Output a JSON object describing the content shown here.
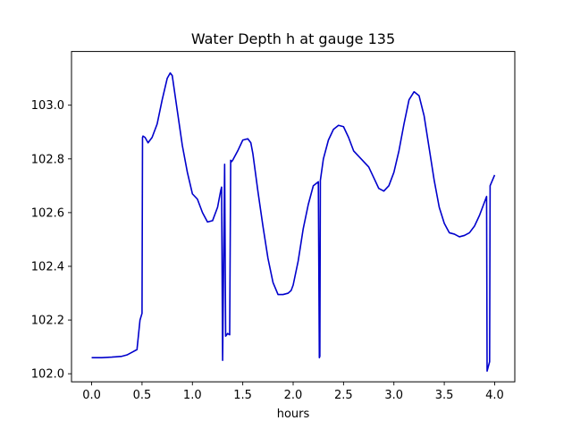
{
  "chart_data": {
    "type": "line",
    "title": "Water Depth h at gauge 135",
    "xlabel": "hours",
    "ylabel": "",
    "xlim": [
      -0.2,
      4.2
    ],
    "ylim": [
      101.97,
      103.2
    ],
    "xticks": [
      0.0,
      0.5,
      1.0,
      1.5,
      2.0,
      2.5,
      3.0,
      3.5,
      4.0
    ],
    "xtick_labels": [
      "0.0",
      "0.5",
      "1.0",
      "1.5",
      "2.0",
      "2.5",
      "3.0",
      "3.5",
      "4.0"
    ],
    "yticks": [
      102.0,
      102.2,
      102.4,
      102.6,
      102.8,
      103.0
    ],
    "ytick_labels": [
      "102.0",
      "102.2",
      "102.4",
      "102.6",
      "102.8",
      "103.0"
    ],
    "grid": false,
    "legend": "none",
    "line_color": "#0000cc",
    "series": [
      {
        "x": [
          0.0,
          0.1,
          0.2,
          0.3,
          0.35,
          0.4,
          0.45,
          0.48,
          0.5,
          0.505,
          0.51,
          0.53,
          0.56,
          0.6,
          0.65,
          0.7,
          0.75,
          0.78,
          0.8,
          0.85,
          0.9,
          0.95,
          1.0,
          1.05,
          1.1,
          1.15,
          1.2,
          1.25,
          1.28,
          1.29,
          1.3,
          1.32,
          1.33,
          1.35,
          1.37,
          1.38,
          1.39,
          1.4,
          1.45,
          1.5,
          1.55,
          1.58,
          1.6,
          1.65,
          1.7,
          1.75,
          1.8,
          1.85,
          1.9,
          1.95,
          1.98,
          2.0,
          2.05,
          2.1,
          2.15,
          2.2,
          2.25,
          2.26,
          2.265,
          2.27,
          2.3,
          2.35,
          2.4,
          2.45,
          2.5,
          2.55,
          2.6,
          2.65,
          2.7,
          2.75,
          2.8,
          2.85,
          2.9,
          2.95,
          3.0,
          3.05,
          3.1,
          3.15,
          3.2,
          3.25,
          3.3,
          3.35,
          3.4,
          3.45,
          3.5,
          3.55,
          3.6,
          3.65,
          3.7,
          3.75,
          3.8,
          3.85,
          3.9,
          3.92,
          3.925,
          3.95,
          3.955,
          4.0
        ],
        "y": [
          102.06,
          102.06,
          102.062,
          102.065,
          102.07,
          102.08,
          102.09,
          102.2,
          102.225,
          102.88,
          102.885,
          102.88,
          102.86,
          102.88,
          102.93,
          103.02,
          103.1,
          103.12,
          103.11,
          102.98,
          102.85,
          102.75,
          102.67,
          102.65,
          102.6,
          102.565,
          102.57,
          102.62,
          102.68,
          102.695,
          102.05,
          102.78,
          102.14,
          102.15,
          102.145,
          102.795,
          102.79,
          102.795,
          102.83,
          102.87,
          102.875,
          102.86,
          102.82,
          102.68,
          102.55,
          102.43,
          102.34,
          102.295,
          102.295,
          102.3,
          102.31,
          102.33,
          102.42,
          102.54,
          102.63,
          102.7,
          102.715,
          102.06,
          102.065,
          102.72,
          102.8,
          102.87,
          102.91,
          102.925,
          102.92,
          102.88,
          102.83,
          102.81,
          102.79,
          102.77,
          102.73,
          102.69,
          102.68,
          102.7,
          102.75,
          102.83,
          102.93,
          103.02,
          103.05,
          103.035,
          102.96,
          102.84,
          102.72,
          102.62,
          102.56,
          102.525,
          102.52,
          102.51,
          102.515,
          102.525,
          102.55,
          102.59,
          102.64,
          102.66,
          102.01,
          102.045,
          102.7,
          102.74
        ]
      }
    ]
  }
}
